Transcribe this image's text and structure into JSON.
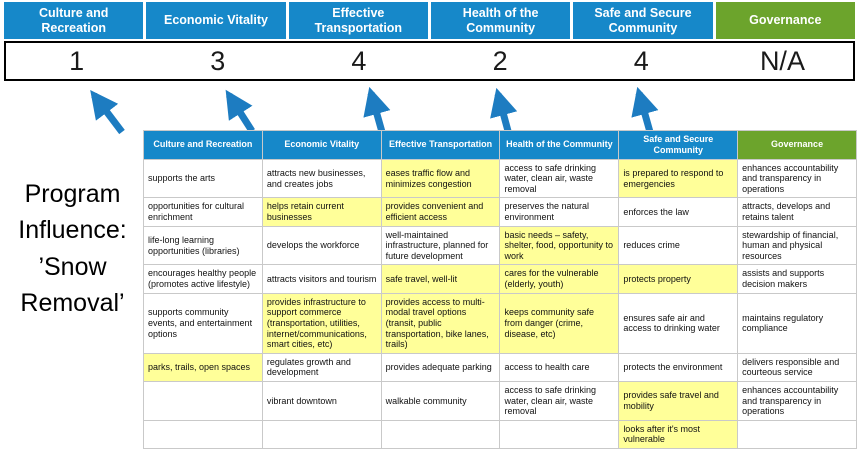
{
  "colors": {
    "blue": "#1688c9",
    "green": "#6ca42c",
    "highlight": "#ffff99",
    "arrow": "#1d7cc1",
    "score_border": "#000000"
  },
  "scoreboard": {
    "columns": [
      {
        "label": "Culture and Recreation",
        "score": "1",
        "color": "blue"
      },
      {
        "label": "Economic Vitality",
        "score": "3",
        "color": "blue"
      },
      {
        "label": "Effective Transportation",
        "score": "4",
        "color": "blue"
      },
      {
        "label": "Health of the Community",
        "score": "2",
        "color": "blue"
      },
      {
        "label": "Safe and Secure Community",
        "score": "4",
        "color": "blue"
      },
      {
        "label": "Governance",
        "score": "N/A",
        "color": "green"
      }
    ]
  },
  "program_label": {
    "text": "Program\nInfluence:\n’Snow\nRemoval’"
  },
  "matrix": {
    "headers": [
      {
        "label": "Culture and Recreation",
        "color": "blue"
      },
      {
        "label": "Economic Vitality",
        "color": "blue"
      },
      {
        "label": "Effective Transportation",
        "color": "blue"
      },
      {
        "label": "Health of the Community",
        "color": "blue"
      },
      {
        "label": "Safe and Secure Community",
        "color": "blue"
      },
      {
        "label": "Governance",
        "color": "green"
      }
    ],
    "rows": [
      [
        {
          "t": "supports the arts",
          "h": false
        },
        {
          "t": "attracts new businesses, and creates jobs",
          "h": false
        },
        {
          "t": "eases traffic flow and minimizes congestion",
          "h": true
        },
        {
          "t": "access to safe drinking water, clean air, waste removal",
          "h": false
        },
        {
          "t": "is prepared to respond to emergencies",
          "h": true
        },
        {
          "t": "enhances accountability and transparency in operations",
          "h": false
        }
      ],
      [
        {
          "t": "opportunities for cultural enrichment",
          "h": false
        },
        {
          "t": "helps retain current businesses",
          "h": true
        },
        {
          "t": "provides convenient and efficient access",
          "h": true
        },
        {
          "t": "preserves the natural environment",
          "h": false
        },
        {
          "t": "enforces the law",
          "h": false
        },
        {
          "t": "attracts, develops and retains talent",
          "h": false
        }
      ],
      [
        {
          "t": "life-long learning opportunities (libraries)",
          "h": false
        },
        {
          "t": "develops the workforce",
          "h": false
        },
        {
          "t": "well-maintained infrastructure, planned for future development",
          "h": false
        },
        {
          "t": "basic needs – safety, shelter, food, opportunity to work",
          "h": true
        },
        {
          "t": "reduces crime",
          "h": false
        },
        {
          "t": "stewardship of financial, human and physical resources",
          "h": false
        }
      ],
      [
        {
          "t": "encourages healthy people (promotes active lifestyle)",
          "h": false
        },
        {
          "t": "attracts visitors and tourism",
          "h": false
        },
        {
          "t": "safe travel, well-lit",
          "h": true
        },
        {
          "t": "cares for the vulnerable (elderly, youth)",
          "h": true
        },
        {
          "t": "protects property",
          "h": true
        },
        {
          "t": "assists and supports decision makers",
          "h": false
        }
      ],
      [
        {
          "t": "supports community events, and entertainment options",
          "h": false
        },
        {
          "t": "provides infrastructure to support commerce (transportation, utilities, internet/communications, smart cities, etc)",
          "h": true
        },
        {
          "t": "provides access to multi-modal travel options (transit, public transportation, bike lanes, trails)",
          "h": true
        },
        {
          "t": "keeps community safe from danger (crime, disease, etc)",
          "h": true
        },
        {
          "t": "ensures safe air and access to drinking water",
          "h": false
        },
        {
          "t": "maintains regulatory compliance",
          "h": false
        }
      ],
      [
        {
          "t": "parks, trails, open spaces",
          "h": true
        },
        {
          "t": "regulates growth and development",
          "h": false
        },
        {
          "t": "provides adequate parking",
          "h": false
        },
        {
          "t": "access to health care",
          "h": false
        },
        {
          "t": "protects the environment",
          "h": false
        },
        {
          "t": "delivers responsible and courteous service",
          "h": false
        }
      ],
      [
        {
          "t": "",
          "h": false
        },
        {
          "t": "vibrant downtown",
          "h": false
        },
        {
          "t": "walkable community",
          "h": false
        },
        {
          "t": "access to safe drinking water, clean air, waste removal",
          "h": false
        },
        {
          "t": "provides safe travel and mobility",
          "h": true
        },
        {
          "t": "enhances accountability and transparency in operations",
          "h": false
        }
      ],
      [
        {
          "t": "",
          "h": false
        },
        {
          "t": "",
          "h": false
        },
        {
          "t": "",
          "h": false
        },
        {
          "t": "",
          "h": false
        },
        {
          "t": "looks after it's most vulnerable",
          "h": true
        },
        {
          "t": "",
          "h": false
        }
      ]
    ]
  }
}
